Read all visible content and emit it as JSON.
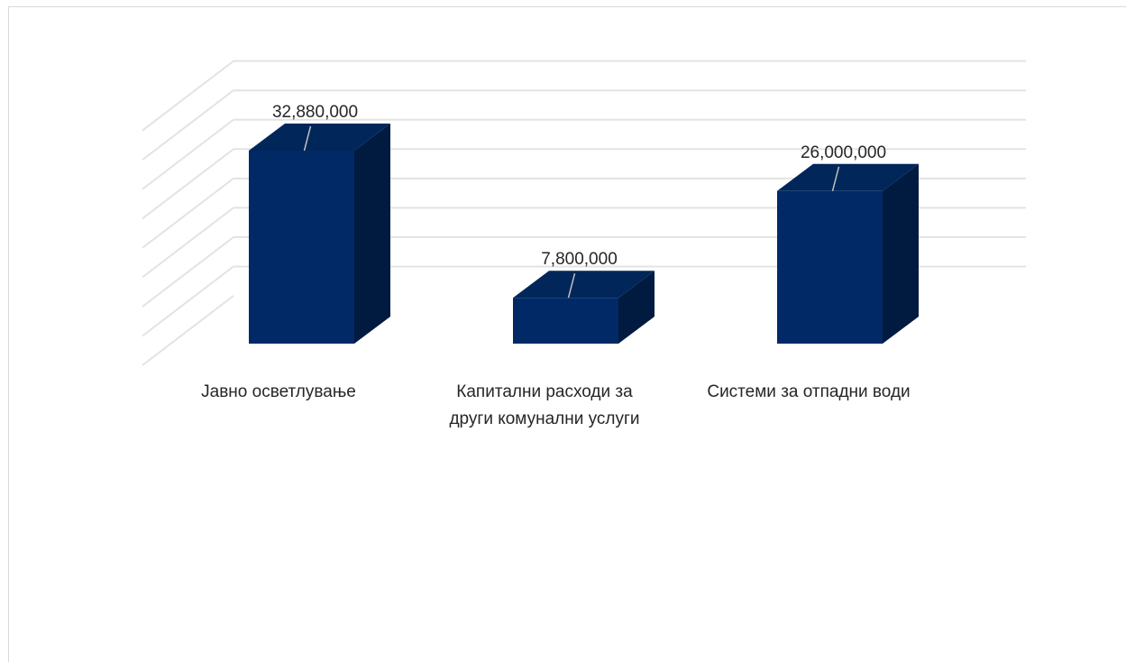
{
  "chart_data": {
    "type": "bar",
    "style": "3d-column",
    "categories": [
      "Јавно осветлување",
      "Капитални расходи за други комунални услуги",
      "Системи за отпадни води"
    ],
    "category_label_lines": [
      [
        "Јавно осветлување"
      ],
      [
        "Капитални расходи за",
        "други комунални услуги"
      ],
      [
        "Системи за отпадни води"
      ]
    ],
    "series": [
      {
        "values": [
          32880000,
          7800000,
          26000000
        ]
      }
    ],
    "data_labels": [
      "32,880,000",
      "7,800,000",
      "26,000,000"
    ],
    "title": "",
    "xlabel": "",
    "ylabel": "",
    "ylim": [
      0,
      40000000
    ],
    "y_grid_step": 5000000,
    "grid": true,
    "legend": "none",
    "colors": {
      "bar_front": "#002966",
      "bar_top": "#00265a",
      "bar_side": "#001a40",
      "grid": "#e3e3e3",
      "text": "#262626",
      "frame": "#d9d9d9"
    }
  }
}
